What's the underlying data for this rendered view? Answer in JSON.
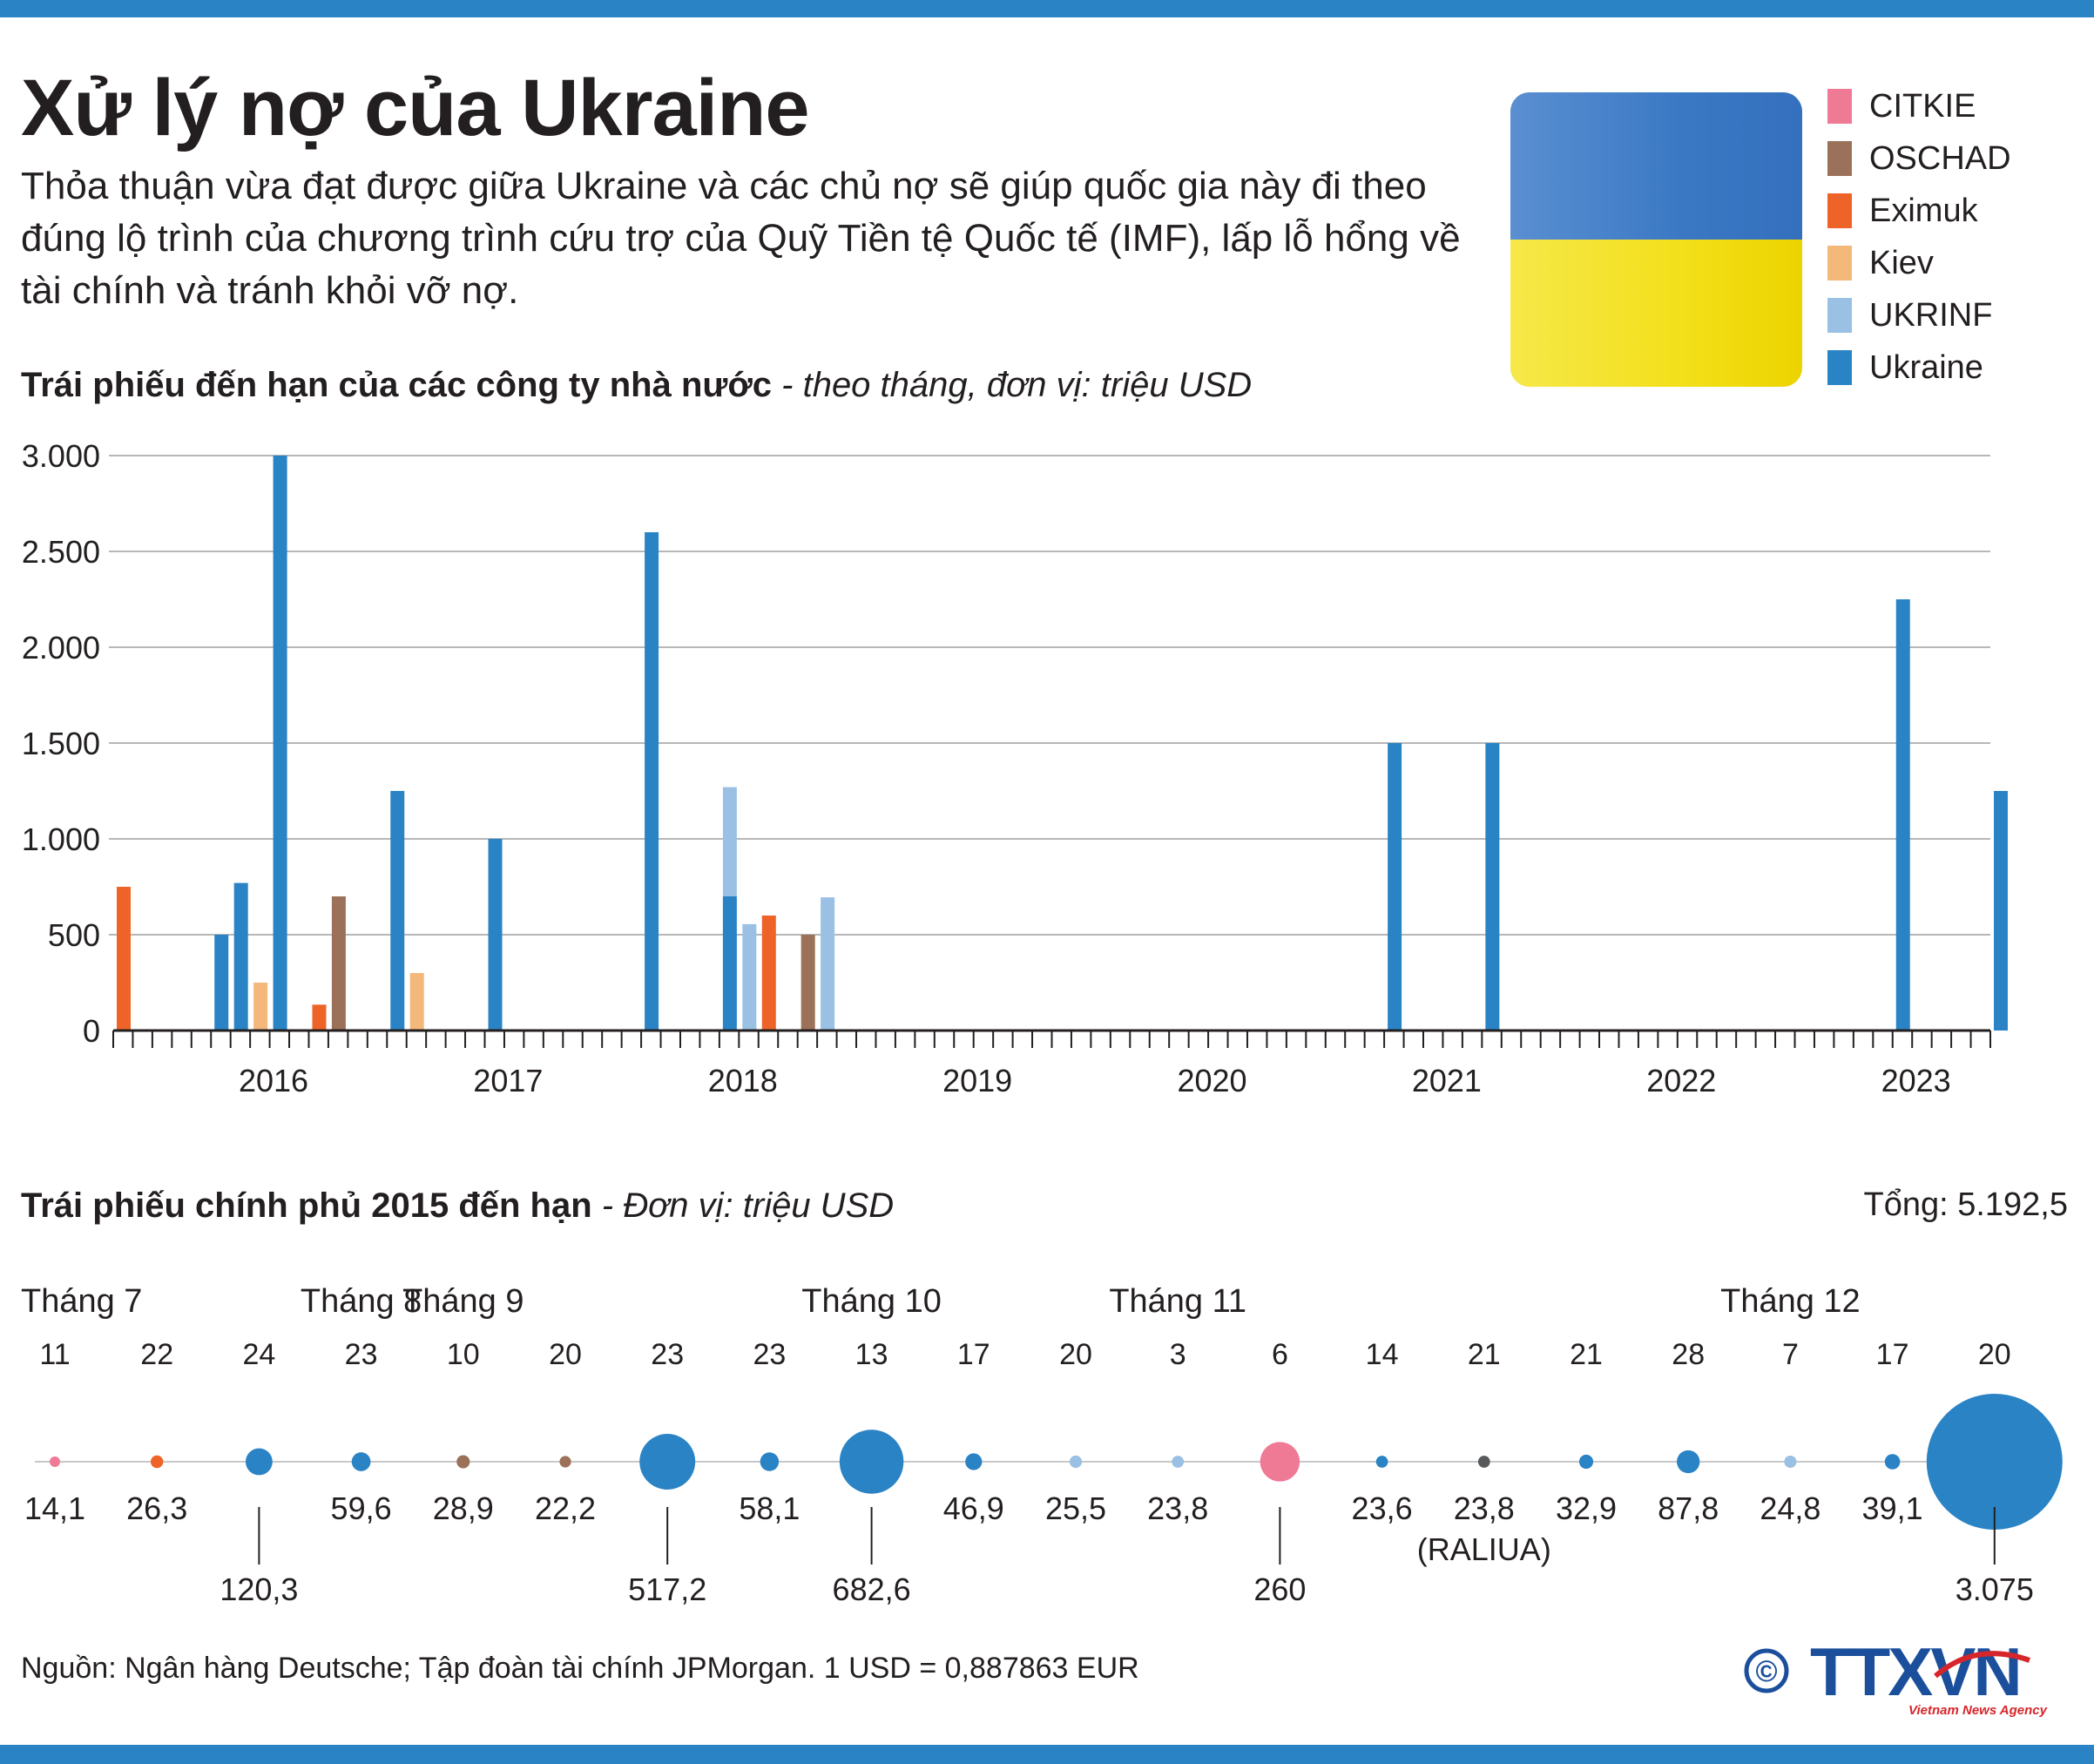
{
  "title": "Xử lý nợ của Ukraine",
  "intro": "Thỏa thuận vừa đạt được giữa Ukraine và các chủ nợ sẽ giúp quốc gia này đi theo đúng lộ trình của chương trình cứu trợ của Quỹ Tiền tệ Quốc tế (IMF), lấp lỗ hổng về tài chính và tránh khỏi vỡ nợ.",
  "legend": [
    {
      "label": "CITKIE",
      "color": "#ef7a96"
    },
    {
      "label": "OSCHAD",
      "color": "#9b7259"
    },
    {
      "label": "Eximuk",
      "color": "#ee6328"
    },
    {
      "label": "Kiev",
      "color": "#f4b87a"
    },
    {
      "label": "UKRINF",
      "color": "#9ac0e4"
    },
    {
      "label": "Ukraine",
      "color": "#2a83c5"
    }
  ],
  "flag": {
    "top_color": "#3a78c4",
    "bottom_color": "#f3df19"
  },
  "chart_title": {
    "bold": "Trái phiếu đến hạn của các công ty nhà nước",
    "italic": " - theo tháng, đơn vị: triệu USD"
  },
  "chart_data": [
    {
      "type": "bar",
      "title": "Trái phiếu đến hạn của các công ty nhà nước - theo tháng, đơn vị: triệu USD",
      "xlabel": "",
      "ylabel": "triệu USD",
      "ylim": [
        0,
        3000
      ],
      "yticks": [
        0,
        500,
        1000,
        1500,
        2000,
        2500,
        3000
      ],
      "ytick_labels": [
        "0",
        "500",
        "1.000",
        "1.500",
        "2.000",
        "2.500",
        "3.000"
      ],
      "xticks": [
        {
          "label": "2016",
          "month": 9
        },
        {
          "label": "2017",
          "month": 21
        },
        {
          "label": "2018",
          "month": 33
        },
        {
          "label": "2019",
          "month": 45
        },
        {
          "label": "2020",
          "month": 57
        },
        {
          "label": "2021",
          "month": 69
        },
        {
          "label": "2022",
          "month": 81
        },
        {
          "label": "2023",
          "month": 93
        }
      ],
      "month_count": 97,
      "grid": true,
      "bars": [
        {
          "month": 0,
          "issuer": "Eximuk",
          "value": 750
        },
        {
          "month": 5,
          "issuer": "Ukraine",
          "value": 500
        },
        {
          "month": 6,
          "issuer": "Ukraine",
          "value": 770
        },
        {
          "month": 7,
          "issuer": "Kiev",
          "value": 250
        },
        {
          "month": 8,
          "issuer": "Ukraine",
          "value": 3000
        },
        {
          "month": 10,
          "issuer": "Eximuk",
          "value": 135
        },
        {
          "month": 11,
          "issuer": "OSCHAD",
          "value": 700
        },
        {
          "month": 14,
          "issuer": "Ukraine",
          "value": 1250
        },
        {
          "month": 15,
          "issuer": "Kiev",
          "value": 300
        },
        {
          "month": 19,
          "issuer": "Ukraine",
          "value": 1000
        },
        {
          "month": 27,
          "issuer": "Ukraine",
          "value": 2600
        },
        {
          "month": 31,
          "issuer": "Ukraine",
          "value": 700
        },
        {
          "month": 31,
          "issuer": "UKRINF",
          "value": 570
        },
        {
          "month": 32,
          "issuer": "UKRINF",
          "value": 555
        },
        {
          "month": 33,
          "issuer": "Eximuk",
          "value": 600
        },
        {
          "month": 35,
          "issuer": "OSCHAD",
          "value": 500
        },
        {
          "month": 36,
          "issuer": "UKRINF",
          "value": 695
        },
        {
          "month": 65,
          "issuer": "Ukraine",
          "value": 1500
        },
        {
          "month": 70,
          "issuer": "Ukraine",
          "value": 1500
        },
        {
          "month": 91,
          "issuer": "Ukraine",
          "value": 2250
        },
        {
          "month": 96,
          "issuer": "Ukraine",
          "value": 1250
        }
      ]
    },
    {
      "type": "scatter",
      "title": "Trái phiếu chính phủ 2015 đến hạn - Đơn vị: triệu USD",
      "total_label": "Tổng: 5.192,5",
      "points": [
        {
          "day": "11",
          "month_label": "Tháng 7",
          "value": 14.1,
          "label": "14,1",
          "issuer": "CITKIE",
          "label_pos": "below"
        },
        {
          "day": "22",
          "month_label": "",
          "value": 26.3,
          "label": "26,3",
          "issuer": "Eximuk",
          "label_pos": "below"
        },
        {
          "day": "24",
          "month_label": "",
          "value": 120.3,
          "label": "120,3",
          "issuer": "Ukraine",
          "label_pos": "far"
        },
        {
          "day": "23",
          "month_label": "Tháng 8",
          "value": 59.6,
          "label": "59,6",
          "issuer": "Ukraine",
          "label_pos": "below"
        },
        {
          "day": "10",
          "month_label": "Tháng 9",
          "value": 28.9,
          "label": "28,9",
          "issuer": "OSCHAD",
          "label_pos": "below"
        },
        {
          "day": "20",
          "month_label": "",
          "value": 22.2,
          "label": "22,2",
          "issuer": "OSCHAD",
          "label_pos": "below"
        },
        {
          "day": "23",
          "month_label": "",
          "value": 517.2,
          "label": "517,2",
          "issuer": "Ukraine",
          "label_pos": "far"
        },
        {
          "day": "23",
          "month_label": "",
          "value": 58.1,
          "label": "58,1",
          "issuer": "Ukraine",
          "label_pos": "below"
        },
        {
          "day": "13",
          "month_label": "Tháng 10",
          "value": 682.6,
          "label": "682,6",
          "issuer": "Ukraine",
          "label_pos": "far"
        },
        {
          "day": "17",
          "month_label": "",
          "value": 46.9,
          "label": "46,9",
          "issuer": "Ukraine",
          "label_pos": "below"
        },
        {
          "day": "20",
          "month_label": "",
          "value": 25.5,
          "label": "25,5",
          "issuer": "UKRINF",
          "label_pos": "below"
        },
        {
          "day": "3",
          "month_label": "Tháng 11",
          "value": 23.8,
          "label": "23,8",
          "issuer": "UKRINF",
          "label_pos": "below"
        },
        {
          "day": "6",
          "month_label": "",
          "value": 260,
          "label": "260",
          "issuer": "CITKIE",
          "label_pos": "far"
        },
        {
          "day": "14",
          "month_label": "",
          "value": 23.6,
          "label": "23,6",
          "issuer": "Ukraine",
          "label_pos": "below"
        },
        {
          "day": "21",
          "month_label": "",
          "value": 23.8,
          "label": "23,8",
          "sublabel": "(RALIUA)",
          "issuer": "RALIUA",
          "label_pos": "below"
        },
        {
          "day": "21",
          "month_label": "",
          "value": 32.9,
          "label": "32,9",
          "issuer": "Ukraine",
          "label_pos": "below"
        },
        {
          "day": "28",
          "month_label": "",
          "value": 87.8,
          "label": "87,8",
          "issuer": "Ukraine",
          "label_pos": "below"
        },
        {
          "day": "7",
          "month_label": "Tháng 12",
          "value": 24.8,
          "label": "24,8",
          "issuer": "UKRINF",
          "label_pos": "below"
        },
        {
          "day": "17",
          "month_label": "",
          "value": 39.1,
          "label": "39,1",
          "issuer": "Ukraine",
          "label_pos": "below"
        },
        {
          "day": "20",
          "month_label": "",
          "value": 3075,
          "label": "3.075",
          "issuer": "Ukraine",
          "label_pos": "far"
        }
      ]
    }
  ],
  "bonds_title": {
    "bold": "Trái phiếu chính phủ 2015 đến hạn",
    "italic": " - Đơn vị: triệu USD"
  },
  "total": "Tổng: 5.192,5",
  "issuer_colors": {
    "CITKIE": "#ef7a96",
    "OSCHAD": "#9b7259",
    "Eximuk": "#ee6328",
    "Kiev": "#f4b87a",
    "UKRINF": "#9ac0e4",
    "Ukraine": "#2a83c5",
    "RALIUA": "#58595b"
  },
  "footer": "Nguồn: Ngân hàng Deutsche; Tập đoàn tài chính JPMorgan.  1 USD =  0,887863 EUR",
  "logo": {
    "copyright": "©",
    "text": "TTXVN",
    "subtitle": "Vietnam News Agency"
  }
}
